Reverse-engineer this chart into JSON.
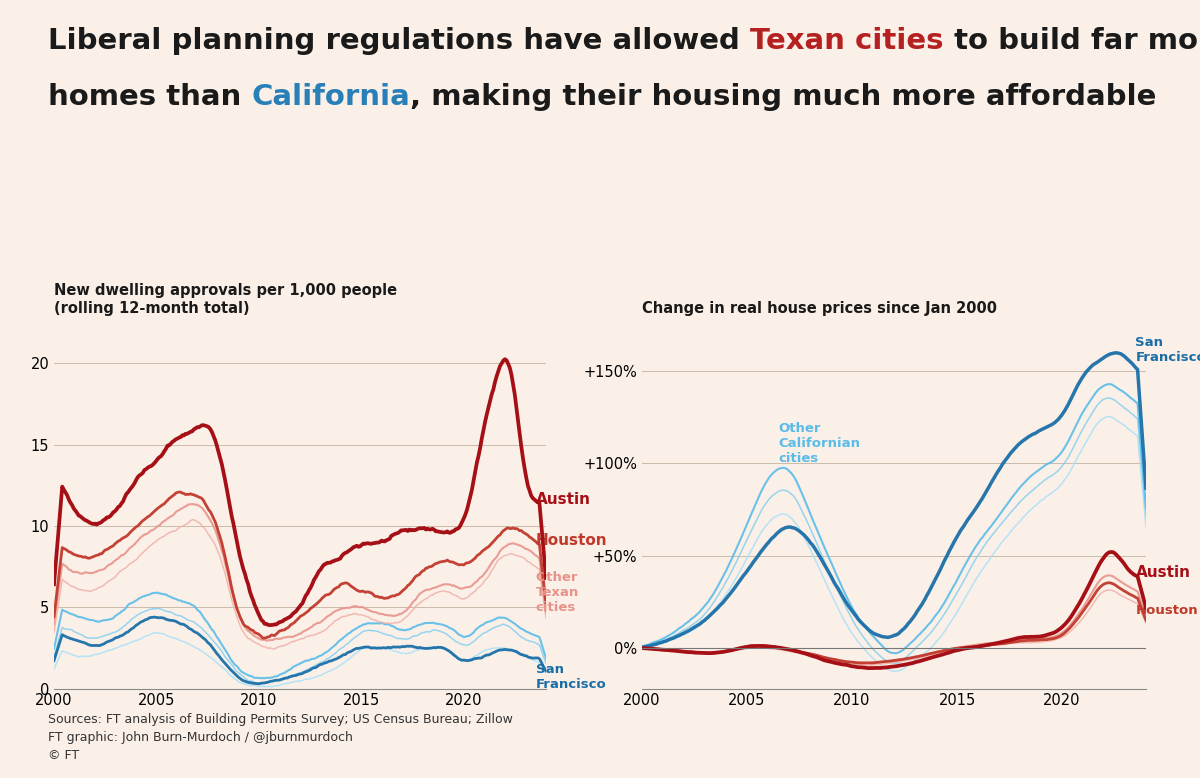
{
  "bg_color": "#faf0e8",
  "left_title": "New dwelling approvals per 1,000 people\n(rolling 12-month total)",
  "right_title": "Change in real house prices since Jan 2000",
  "sources": "Sources: FT analysis of Building Permits Survey; US Census Bureau; Zillow\nFT graphic: John Burn-Murdoch / @jburnmurdoch\n© FT",
  "colors": {
    "austin": "#a50f15",
    "houston": "#c0392b",
    "other_texan": "#e8938a",
    "other_texan2": "#f0b0a8",
    "sf": "#1a6ea8",
    "other_ca": "#5abce8",
    "other_ca2": "#85d0f0",
    "other_ca3": "#aae0f8"
  },
  "title_line1_parts": [
    {
      "text": "Liberal planning regulations have allowed ",
      "color": "#1a1a1a"
    },
    {
      "text": "Texan cities",
      "color": "#b52020"
    },
    {
      "text": " to build far more",
      "color": "#1a1a1a"
    }
  ],
  "title_line2_parts": [
    {
      "text": "homes than ",
      "color": "#1a1a1a"
    },
    {
      "text": "California",
      "color": "#2980b9"
    },
    {
      "text": ", making their housing much more affordable",
      "color": "#1a1a1a"
    }
  ]
}
